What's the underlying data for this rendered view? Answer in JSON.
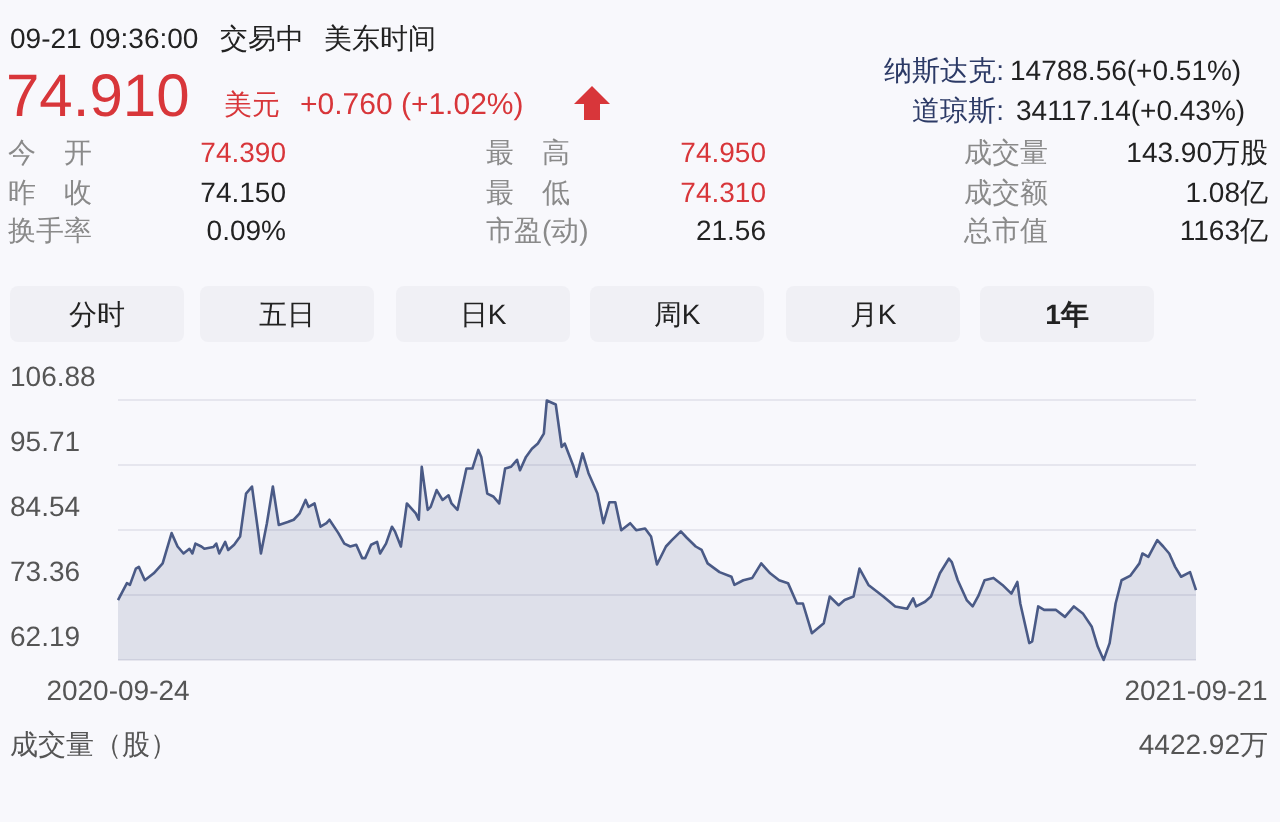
{
  "chart_data": [
    {
      "type": "other",
      "annotations": [
        "09-21 09:36:00",
        "交易中",
        "美东时间",
        "74.910",
        "美元",
        "+0.760 (+1.02%)",
        "纳斯达克:",
        "14788.56(+0.51%)",
        "道琼斯:",
        "34117.14(+0.43%)",
        "今　开",
        "74.390",
        "最　高",
        "74.950",
        "成交量",
        "143.90万股",
        "昨　收",
        "74.150",
        "最　低",
        "74.310",
        "成交额",
        "1.08亿",
        "换手率",
        "0.09%",
        "市盈(动)",
        "21.56",
        "总市值",
        "1163亿",
        "分时",
        "五日",
        "日K",
        "周K",
        "月K",
        "1年"
      ]
    },
    {
      "type": "area",
      "color": "#4a5a86",
      "grid": "y",
      "xlim": [
        "2020-09-24",
        "2021-09-21"
      ],
      "xticks": [
        {
          "value": "2020-09-24",
          "label": "2020-09-24"
        },
        {
          "value": "2021-09-21",
          "label": "2021-09-21"
        }
      ],
      "ylim": [
        62.19,
        106.88
      ],
      "yticks": [
        {
          "value": 62.19,
          "label": "62.19"
        },
        {
          "value": 73.36,
          "label": "73.36"
        },
        {
          "value": 84.54,
          "label": "84.54"
        },
        {
          "value": 95.71,
          "label": "95.71"
        },
        {
          "value": 106.88,
          "label": "106.88"
        }
      ],
      "annotations": [
        "成交量（股）",
        "4422.92万"
      ],
      "x": [
        "2020-09-24",
        "2020-09-27",
        "2020-09-28",
        "2020-09-30",
        "2020-10-01",
        "2020-10-03",
        "2020-10-06",
        "2020-10-09",
        "2020-10-12",
        "2020-10-14",
        "2020-10-16",
        "2020-10-18",
        "2020-10-19",
        "2020-10-20",
        "2020-10-22",
        "2020-10-23",
        "2020-10-26",
        "2020-10-27",
        "2020-10-28",
        "2020-10-30",
        "2020-10-31",
        "2020-11-02",
        "2020-11-04",
        "2020-11-06",
        "2020-11-08",
        "2020-11-10",
        "2020-11-11",
        "2020-11-13",
        "2020-11-15",
        "2020-11-17",
        "2020-11-20",
        "2020-11-22",
        "2020-11-24",
        "2020-11-26",
        "2020-11-27",
        "2020-11-29",
        "2020-12-01",
        "2020-12-03",
        "2020-12-04",
        "2020-12-07",
        "2020-12-09",
        "2020-12-11",
        "2020-12-13",
        "2020-12-15",
        "2020-12-16",
        "2020-12-18",
        "2020-12-20",
        "2020-12-21",
        "2020-12-23",
        "2020-12-25",
        "2020-12-26",
        "2020-12-28",
        "2020-12-30",
        "2021-01-02",
        "2021-01-03",
        "2021-01-04",
        "2021-01-06",
        "2021-01-07",
        "2021-01-09",
        "2021-01-11",
        "2021-01-13",
        "2021-01-14",
        "2021-01-16",
        "2021-01-19",
        "2021-01-21",
        "2021-01-23",
        "2021-01-24",
        "2021-01-26",
        "2021-01-28",
        "2021-01-30",
        "2021-02-01",
        "2021-02-03",
        "2021-02-05",
        "2021-02-06",
        "2021-02-08",
        "2021-02-10",
        "2021-02-12",
        "2021-02-14",
        "2021-02-15",
        "2021-02-18",
        "2021-02-20",
        "2021-02-21",
        "2021-02-24",
        "2021-02-25",
        "2021-02-27",
        "2021-03-01",
        "2021-03-04",
        "2021-03-06",
        "2021-03-08",
        "2021-03-10",
        "2021-03-12",
        "2021-03-15",
        "2021-03-17",
        "2021-03-20",
        "2021-03-22",
        "2021-03-24",
        "2021-03-27",
        "2021-03-29",
        "2021-04-01",
        "2021-04-03",
        "2021-04-06",
        "2021-04-08",
        "2021-04-10",
        "2021-04-14",
        "2021-04-18",
        "2021-04-19",
        "2021-04-22",
        "2021-04-25",
        "2021-04-28",
        "2021-05-01",
        "2021-05-04",
        "2021-05-07",
        "2021-05-10",
        "2021-05-12",
        "2021-05-15",
        "2021-05-19",
        "2021-05-21",
        "2021-05-24",
        "2021-05-26",
        "2021-05-29",
        "2021-05-31",
        "2021-06-03",
        "2021-06-08",
        "2021-06-12",
        "2021-06-16",
        "2021-06-18",
        "2021-06-19",
        "2021-06-22",
        "2021-06-24",
        "2021-06-27",
        "2021-06-30",
        "2021-07-01",
        "2021-07-03",
        "2021-07-06",
        "2021-07-08",
        "2021-07-10",
        "2021-07-12",
        "2021-07-15",
        "2021-07-18",
        "2021-07-21",
        "2021-07-23",
        "2021-07-24",
        "2021-07-27",
        "2021-07-28",
        "2021-07-30",
        "2021-08-01",
        "2021-08-05",
        "2021-08-08",
        "2021-08-11",
        "2021-08-14",
        "2021-08-17",
        "2021-08-19",
        "2021-08-21",
        "2021-08-23",
        "2021-08-25",
        "2021-08-27",
        "2021-08-30",
        "2021-09-02",
        "2021-09-03",
        "2021-09-05",
        "2021-09-08",
        "2021-09-10",
        "2021-09-12",
        "2021-09-14",
        "2021-09-16",
        "2021-09-19",
        "2021-09-21"
      ],
      "values": [
        72.5,
        75.4,
        75.1,
        77.9,
        78.2,
        75.9,
        77.1,
        78.8,
        84.0,
        81.7,
        80.5,
        81.3,
        80.5,
        82.2,
        81.7,
        81.3,
        81.6,
        82.2,
        80.5,
        82.5,
        81.1,
        82.0,
        83.4,
        90.8,
        92.0,
        84.5,
        80.5,
        85.7,
        92.0,
        85.4,
        85.9,
        86.3,
        87.4,
        89.7,
        88.5,
        89.1,
        85.1,
        85.7,
        86.3,
        84.0,
        82.2,
        81.7,
        82.0,
        79.7,
        79.7,
        82.0,
        82.5,
        80.5,
        82.2,
        85.1,
        84.3,
        81.7,
        89.1,
        87.4,
        86.3,
        95.4,
        88.0,
        88.5,
        91.4,
        89.7,
        90.5,
        89.1,
        88.0,
        95.1,
        95.1,
        98.3,
        97.1,
        90.8,
        90.3,
        89.1,
        95.1,
        95.4,
        96.6,
        94.8,
        97.1,
        98.5,
        99.4,
        101.1,
        106.8,
        106.1,
        98.8,
        99.4,
        95.4,
        93.7,
        97.7,
        94.3,
        90.8,
        85.7,
        89.3,
        89.3,
        84.5,
        85.7,
        84.5,
        84.8,
        83.4,
        78.6,
        81.7,
        82.8,
        84.3,
        83.2,
        81.7,
        81.1,
        78.8,
        77.3,
        76.5,
        75.1,
        75.9,
        76.3,
        78.8,
        77.1,
        75.9,
        75.4,
        71.9,
        71.9,
        66.8,
        68.5,
        73.1,
        71.6,
        72.5,
        73.1,
        77.9,
        75.1,
        73.1,
        71.4,
        71.0,
        72.8,
        71.4,
        72.2,
        73.1,
        77.1,
        79.6,
        79.0,
        75.9,
        72.5,
        71.4,
        73.3,
        75.9,
        76.3,
        75.1,
        73.6,
        75.6,
        71.9,
        65.1,
        65.4,
        71.4,
        70.8,
        70.8,
        69.6,
        71.4,
        70.2,
        67.9,
        64.5,
        62.2,
        65.1,
        71.9,
        75.9,
        76.7,
        78.8,
        80.5,
        79.9,
        82.8,
        81.7,
        80.5,
        78.2,
        76.5,
        77.3,
        74.2
      ]
    }
  ]
}
